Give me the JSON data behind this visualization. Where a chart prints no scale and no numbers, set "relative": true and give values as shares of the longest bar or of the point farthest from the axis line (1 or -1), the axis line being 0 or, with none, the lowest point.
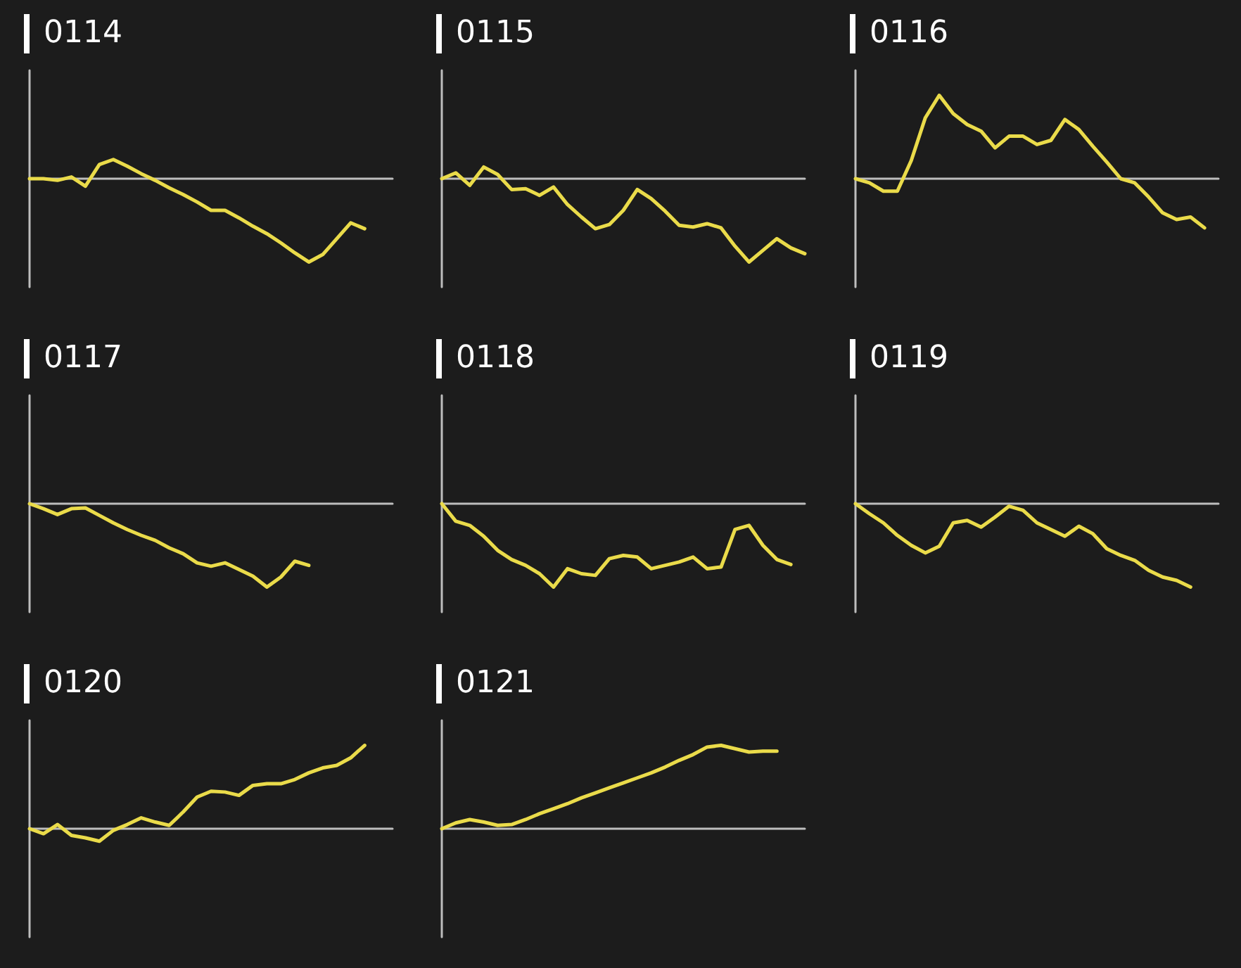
{
  "chart_data": [
    {
      "type": "line",
      "title": "0114",
      "relative": true,
      "categories": [
        null,
        null,
        null,
        null,
        null,
        null,
        null,
        null,
        null,
        null,
        null,
        null,
        null,
        null,
        null,
        null,
        null,
        null,
        null,
        null,
        null,
        null,
        null,
        null,
        null,
        null,
        null
      ],
      "series": [
        {
          "color": "#eadb4a",
          "values": [
            0,
            0,
            -0.02,
            0.02,
            -0.09,
            0.17,
            0.23,
            0.15,
            0.06,
            -0.02,
            -0.11,
            -0.19,
            -0.28,
            -0.38,
            -0.38,
            -0.47,
            -0.57,
            -0.66,
            -0.77,
            -0.89,
            -1,
            -0.91,
            -0.72,
            -0.53,
            -0.6,
            null,
            null
          ]
        }
      ]
    },
    {
      "type": "line",
      "title": "0115",
      "relative": true,
      "categories": [
        null,
        null,
        null,
        null,
        null,
        null,
        null,
        null,
        null,
        null,
        null,
        null,
        null,
        null,
        null,
        null,
        null,
        null,
        null,
        null,
        null,
        null,
        null,
        null,
        null,
        null,
        null
      ],
      "series": [
        {
          "color": "#eadb4a",
          "values": [
            0,
            0.07,
            -0.08,
            0.14,
            0.05,
            -0.13,
            -0.12,
            -0.2,
            -0.1,
            -0.31,
            -0.46,
            -0.6,
            -0.55,
            -0.38,
            -0.13,
            -0.24,
            -0.39,
            -0.56,
            -0.58,
            -0.54,
            -0.59,
            -0.81,
            -1,
            -0.86,
            -0.72,
            -0.83,
            -0.9
          ]
        }
      ]
    },
    {
      "type": "line",
      "title": "0116",
      "relative": true,
      "categories": [
        null,
        null,
        null,
        null,
        null,
        null,
        null,
        null,
        null,
        null,
        null,
        null,
        null,
        null,
        null,
        null,
        null,
        null,
        null,
        null,
        null,
        null,
        null,
        null,
        null,
        null,
        null
      ],
      "series": [
        {
          "color": "#eadb4a",
          "values": [
            0,
            -0.05,
            -0.15,
            -0.15,
            0.22,
            0.73,
            1,
            0.78,
            0.65,
            0.57,
            0.37,
            0.51,
            0.51,
            0.41,
            0.46,
            0.71,
            0.59,
            0.39,
            0.2,
            0,
            -0.05,
            -0.22,
            -0.41,
            -0.49,
            -0.46,
            -0.59,
            null
          ]
        }
      ]
    },
    {
      "type": "line",
      "title": "0117",
      "relative": true,
      "categories": [
        null,
        null,
        null,
        null,
        null,
        null,
        null,
        null,
        null,
        null,
        null,
        null,
        null,
        null,
        null,
        null,
        null,
        null,
        null,
        null,
        null,
        null,
        null,
        null,
        null,
        null,
        null
      ],
      "series": [
        {
          "color": "#eadb4a",
          "values": [
            0,
            -0.06,
            -0.13,
            -0.06,
            -0.05,
            -0.14,
            -0.23,
            -0.31,
            -0.38,
            -0.44,
            -0.53,
            -0.6,
            -0.71,
            -0.75,
            -0.71,
            -0.79,
            -0.87,
            -1,
            -0.88,
            -0.69,
            -0.74,
            null,
            null,
            null,
            null,
            null,
            null
          ]
        }
      ]
    },
    {
      "type": "line",
      "title": "0118",
      "relative": true,
      "categories": [
        null,
        null,
        null,
        null,
        null,
        null,
        null,
        null,
        null,
        null,
        null,
        null,
        null,
        null,
        null,
        null,
        null,
        null,
        null,
        null,
        null,
        null,
        null,
        null,
        null,
        null,
        null
      ],
      "series": [
        {
          "color": "#eadb4a",
          "values": [
            0,
            -0.21,
            -0.26,
            -0.39,
            -0.56,
            -0.67,
            -0.74,
            -0.84,
            -1,
            -0.78,
            -0.84,
            -0.86,
            -0.66,
            -0.62,
            -0.64,
            -0.78,
            -0.74,
            -0.7,
            -0.64,
            -0.78,
            -0.76,
            -0.31,
            -0.26,
            -0.5,
            -0.67,
            -0.73,
            null
          ]
        }
      ]
    },
    {
      "type": "line",
      "title": "0119",
      "relative": true,
      "categories": [
        null,
        null,
        null,
        null,
        null,
        null,
        null,
        null,
        null,
        null,
        null,
        null,
        null,
        null,
        null,
        null,
        null,
        null,
        null,
        null,
        null,
        null,
        null,
        null,
        null,
        null,
        null
      ],
      "series": [
        {
          "color": "#eadb4a",
          "values": [
            0,
            -0.12,
            -0.23,
            -0.38,
            -0.5,
            -0.59,
            -0.51,
            -0.23,
            -0.2,
            -0.28,
            -0.16,
            -0.03,
            -0.08,
            -0.23,
            -0.31,
            -0.39,
            -0.27,
            -0.36,
            -0.54,
            -0.62,
            -0.68,
            -0.8,
            -0.88,
            -0.92,
            -1,
            null,
            null
          ]
        }
      ]
    },
    {
      "type": "line",
      "title": "0120",
      "relative": true,
      "categories": [
        null,
        null,
        null,
        null,
        null,
        null,
        null,
        null,
        null,
        null,
        null,
        null,
        null,
        null,
        null,
        null,
        null,
        null,
        null,
        null,
        null,
        null,
        null,
        null,
        null,
        null,
        null
      ],
      "series": [
        {
          "color": "#eadb4a",
          "values": [
            0,
            -0.06,
            0.05,
            -0.08,
            -0.11,
            -0.15,
            -0.02,
            0.05,
            0.13,
            0.08,
            0.04,
            0.2,
            0.38,
            0.45,
            0.44,
            0.4,
            0.52,
            0.54,
            0.54,
            0.59,
            0.67,
            0.73,
            0.76,
            0.85,
            1,
            null,
            null
          ]
        }
      ]
    },
    {
      "type": "line",
      "title": "0121",
      "relative": true,
      "categories": [
        null,
        null,
        null,
        null,
        null,
        null,
        null,
        null,
        null,
        null,
        null,
        null,
        null,
        null,
        null,
        null,
        null,
        null,
        null,
        null,
        null,
        null,
        null,
        null,
        null,
        null,
        null
      ],
      "series": [
        {
          "color": "#eadb4a",
          "values": [
            0,
            0.07,
            0.11,
            0.08,
            0.04,
            0.05,
            0.11,
            0.18,
            0.24,
            0.3,
            0.37,
            0.43,
            0.49,
            0.55,
            0.61,
            0.67,
            0.74,
            0.82,
            0.89,
            0.98,
            1,
            0.96,
            0.92,
            0.93,
            0.93,
            null,
            null
          ]
        }
      ]
    }
  ]
}
